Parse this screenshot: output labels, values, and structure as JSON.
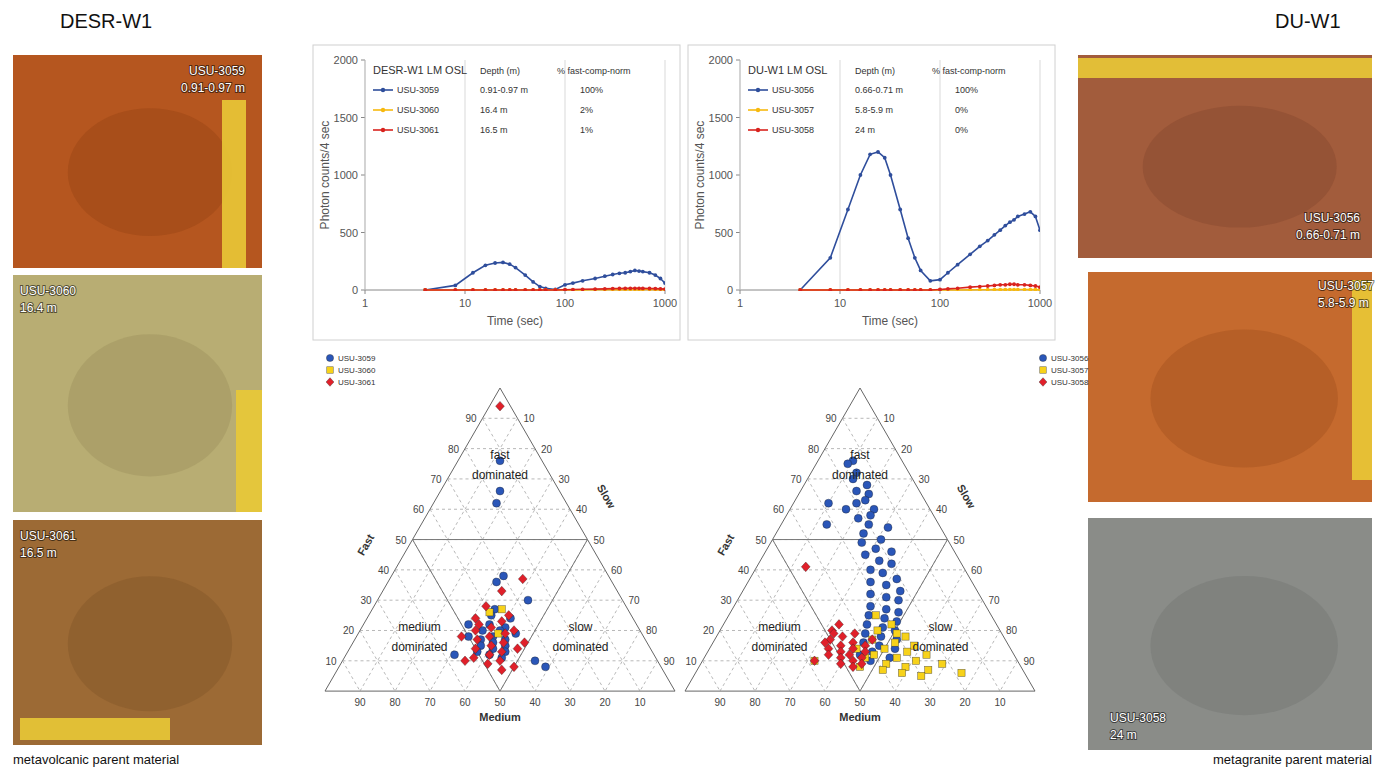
{
  "panels": [
    {
      "title": "DESR-W1",
      "caption": "metavolcanic parent material",
      "photos": [
        {
          "sample": "USU-3059",
          "depth": "0.91-0.97 m"
        },
        {
          "sample": "USU-3060",
          "depth": "16.4 m"
        },
        {
          "sample": "USU-3061",
          "depth": "16.5 m"
        }
      ]
    },
    {
      "title": "DU-W1",
      "caption": "metagranite parent material",
      "photos": [
        {
          "sample": "USU-3056",
          "depth": "0.66-0.71 m"
        },
        {
          "sample": "USU-3057",
          "depth": "5.8-5.9 m"
        },
        {
          "sample": "USU-3058",
          "depth": "24 m"
        }
      ]
    }
  ],
  "chart_data": [
    {
      "type": "line",
      "title": "DESR-W1 LM OSL",
      "x_label": "Time (sec)",
      "y_label": "Photon counts/4 sec",
      "log": "x",
      "grid": "x",
      "legend": "upper left",
      "legend_headers": [
        "Depth (m)",
        "% fast-comp-norm"
      ],
      "xlim": [
        1,
        1000
      ],
      "xticks": [
        1,
        10,
        100,
        1000
      ],
      "ylim": [
        0,
        2000
      ],
      "yticks": [
        0,
        500,
        1000,
        1500,
        2000
      ],
      "x": [
        4,
        8,
        12,
        16,
        20,
        24,
        28,
        32,
        40,
        48,
        56,
        64,
        80,
        100,
        120,
        150,
        200,
        250,
        300,
        350,
        400,
        450,
        500,
        550,
        600,
        700,
        800,
        900,
        1000
      ],
      "series": [
        {
          "name": "USU-3059",
          "color": "#2f4e9c",
          "marker": "circle",
          "depth": "0.91-0.97 m",
          "fast_comp_norm": "100%",
          "values": [
            0,
            40,
            150,
            215,
            235,
            240,
            225,
            195,
            130,
            70,
            30,
            15,
            5,
            45,
            60,
            80,
            100,
            120,
            135,
            145,
            150,
            160,
            170,
            165,
            160,
            150,
            130,
            100,
            60
          ]
        },
        {
          "name": "USU-3060",
          "color": "#f7b90f",
          "marker": "circle",
          "depth": "16.4 m",
          "fast_comp_norm": "2%",
          "values": [
            0,
            0,
            0,
            0,
            0,
            0,
            0,
            0,
            0,
            0,
            0,
            0,
            0,
            0,
            0,
            0,
            2,
            2,
            3,
            3,
            3,
            4,
            4,
            4,
            4,
            4,
            3,
            3,
            3
          ]
        },
        {
          "name": "USU-3061",
          "color": "#d9231e",
          "marker": "circle",
          "depth": "16.5 m",
          "fast_comp_norm": "1%",
          "values": [
            0,
            0,
            0,
            0,
            0,
            0,
            0,
            0,
            0,
            0,
            0,
            0,
            0,
            2,
            4,
            6,
            8,
            10,
            12,
            13,
            14,
            15,
            15,
            15,
            14,
            13,
            12,
            10,
            8
          ]
        }
      ]
    },
    {
      "type": "line",
      "title": "DU-W1 LM OSL",
      "x_label": "Time (sec)",
      "y_label": "Photon counts/4 sec",
      "log": "x",
      "grid": "x",
      "legend": "upper left",
      "legend_headers": [
        "Depth (m)",
        "% fast-comp-norm"
      ],
      "xlim": [
        1,
        1000
      ],
      "xticks": [
        1,
        10,
        100,
        1000
      ],
      "ylim": [
        0,
        2000
      ],
      "yticks": [
        0,
        500,
        1000,
        1500,
        2000
      ],
      "x": [
        4,
        8,
        12,
        16,
        20,
        24,
        28,
        32,
        40,
        48,
        56,
        64,
        80,
        100,
        120,
        150,
        200,
        250,
        300,
        350,
        400,
        450,
        500,
        550,
        600,
        700,
        800,
        900,
        1000
      ],
      "series": [
        {
          "name": "USU-3056",
          "color": "#2f4e9c",
          "marker": "circle",
          "depth": "0.66-0.71 m",
          "fast_comp_norm": "100%",
          "values": [
            0,
            280,
            700,
            1000,
            1180,
            1200,
            1150,
            1000,
            700,
            450,
            280,
            170,
            80,
            90,
            150,
            220,
            310,
            380,
            430,
            480,
            520,
            560,
            590,
            610,
            640,
            660,
            680,
            640,
            520
          ]
        },
        {
          "name": "USU-3057",
          "color": "#f7b90f",
          "marker": "circle",
          "depth": "5.8-5.9 m",
          "fast_comp_norm": "0%",
          "values": [
            0,
            0,
            0,
            0,
            0,
            0,
            0,
            0,
            0,
            0,
            0,
            0,
            0,
            0,
            0,
            0,
            1,
            2,
            2,
            3,
            3,
            3,
            4,
            4,
            4,
            4,
            3,
            3,
            2
          ]
        },
        {
          "name": "USU-3058",
          "color": "#d9231e",
          "marker": "circle",
          "depth": "24 m",
          "fast_comp_norm": "0%",
          "values": [
            0,
            0,
            0,
            0,
            0,
            0,
            0,
            0,
            0,
            0,
            0,
            0,
            0,
            5,
            10,
            15,
            25,
            30,
            35,
            40,
            45,
            45,
            50,
            50,
            45,
            45,
            40,
            35,
            25
          ]
        }
      ]
    },
    {
      "type": "ternary",
      "axis_labels": {
        "fast": "Fast",
        "medium": "Medium",
        "slow": "Slow"
      },
      "ticks": [
        10,
        20,
        30,
        40,
        50,
        60,
        70,
        80,
        90
      ],
      "grid": true,
      "legend": "upper left",
      "region_labels": [
        "fast dominated",
        "medium dominated",
        "slow dominated"
      ],
      "series": [
        {
          "name": "USU-3059",
          "color": "#2a56b8",
          "marker": "circle",
          "fast": [
            76,
            66,
            62,
            38,
            36,
            30,
            27,
            25,
            24,
            22,
            21,
            20,
            20,
            19,
            18,
            17,
            17,
            16,
            15,
            15,
            14,
            13,
            13,
            12,
            12,
            11,
            10,
            8,
            22,
            18
          ],
          "medium": [
            12,
            17,
            20,
            30,
            33,
            27,
            38,
            40,
            35,
            42,
            38,
            45,
            40,
            36,
            43,
            47,
            40,
            44,
            48,
            41,
            45,
            50,
            42,
            47,
            57,
            44,
            35,
            33,
            48,
            50
          ],
          "slow": [
            12,
            17,
            18,
            32,
            31,
            43,
            35,
            35,
            41,
            36,
            41,
            35,
            40,
            45,
            39,
            36,
            43,
            40,
            37,
            44,
            41,
            37,
            45,
            41,
            31,
            45,
            55,
            59,
            30,
            32
          ]
        },
        {
          "name": "USU-3060",
          "color": "#f7d21a",
          "marker": "square",
          "fast": [
            26,
            27,
            19
          ],
          "medium": [
            40,
            36,
            41
          ],
          "slow": [
            34,
            37,
            40
          ]
        },
        {
          "name": "USU-3061",
          "color": "#e0202a",
          "marker": "diamond",
          "fast": [
            94,
            37,
            33,
            28,
            25,
            24,
            23,
            21,
            20,
            19,
            18,
            17,
            16,
            15,
            14,
            13,
            12,
            11,
            10,
            9,
            8,
            7,
            14,
            16,
            20,
            22,
            18,
            10
          ],
          "medium": [
            3,
            25,
            33,
            40,
            35,
            45,
            38,
            42,
            47,
            39,
            44,
            48,
            41,
            45,
            50,
            43,
            47,
            52,
            45,
            49,
            42,
            46,
            38,
            35,
            36,
            45,
            52,
            55
          ],
          "slow": [
            3,
            38,
            34,
            32,
            40,
            31,
            39,
            37,
            33,
            42,
            38,
            35,
            43,
            40,
            36,
            44,
            41,
            37,
            45,
            42,
            50,
            47,
            48,
            49,
            44,
            33,
            30,
            35
          ]
        }
      ]
    },
    {
      "type": "ternary",
      "axis_labels": {
        "fast": "Fast",
        "medium": "Medium",
        "slow": "Slow"
      },
      "ticks": [
        10,
        20,
        30,
        40,
        50,
        60,
        70,
        80,
        90
      ],
      "grid": true,
      "legend": "upper right",
      "region_labels": [
        "fast dominated",
        "medium dominated",
        "slow dominated"
      ],
      "series": [
        {
          "name": "USU-3056",
          "color": "#2a56b8",
          "marker": "circle",
          "fast": [
            76,
            75,
            72,
            70,
            68,
            66,
            65,
            63,
            62,
            60,
            60,
            58,
            57,
            55,
            54,
            52,
            50,
            49,
            47,
            46,
            45,
            43,
            42,
            40,
            39,
            37,
            36,
            35,
            33,
            32,
            31,
            30,
            28,
            27,
            26,
            25,
            24,
            23,
            22,
            21,
            20,
            19,
            18,
            17,
            16,
            15,
            14,
            13,
            12,
            11,
            10,
            62,
            55
          ],
          "medium": [
            14,
            16,
            15,
            17,
            14,
            18,
            15,
            17,
            20,
            16,
            24,
            18,
            22,
            20,
            15,
            23,
            19,
            25,
            22,
            18,
            26,
            23,
            20,
            27,
            24,
            21,
            29,
            25,
            22,
            31,
            27,
            24,
            33,
            29,
            26,
            35,
            31,
            28,
            37,
            33,
            30,
            39,
            35,
            31,
            41,
            37,
            33,
            40,
            44,
            36,
            42,
            28,
            32
          ],
          "slow": [
            10,
            9,
            13,
            13,
            18,
            16,
            20,
            20,
            18,
            24,
            16,
            24,
            21,
            25,
            31,
            25,
            31,
            26,
            31,
            36,
            29,
            34,
            38,
            33,
            37,
            42,
            35,
            40,
            45,
            37,
            42,
            46,
            39,
            44,
            48,
            40,
            45,
            49,
            41,
            46,
            50,
            42,
            47,
            52,
            43,
            48,
            53,
            47,
            44,
            53,
            48,
            10,
            13
          ]
        },
        {
          "name": "USU-3057",
          "color": "#f7d21a",
          "marker": "square",
          "fast": [
            25,
            22,
            20,
            18,
            17,
            16,
            15,
            14,
            13,
            12,
            12,
            11,
            10,
            10,
            9,
            9,
            8,
            7,
            7,
            6,
            5,
            8,
            11,
            14,
            19,
            6
          ],
          "medium": [
            33,
            30,
            35,
            28,
            38,
            32,
            27,
            36,
            30,
            40,
            25,
            34,
            29,
            58,
            38,
            22,
            33,
            40,
            27,
            35,
            30,
            46,
            43,
            44,
            30,
            18
          ],
          "slow": [
            42,
            48,
            45,
            54,
            45,
            52,
            58,
            50,
            57,
            48,
            63,
            55,
            61,
            32,
            53,
            69,
            59,
            53,
            66,
            59,
            65,
            46,
            46,
            42,
            51,
            76
          ]
        },
        {
          "name": "USU-3058",
          "color": "#e0202a",
          "marker": "diamond",
          "fast": [
            41,
            22,
            20,
            19,
            18,
            17,
            16,
            15,
            15,
            14,
            14,
            13,
            13,
            12,
            12,
            11,
            11,
            10,
            10,
            9,
            9,
            8,
            16,
            19,
            17
          ],
          "medium": [
            45,
            45,
            48,
            42,
            46,
            50,
            44,
            48,
            41,
            52,
            45,
            49,
            42,
            47,
            53,
            44,
            50,
            47,
            58,
            45,
            51,
            48,
            52,
            48,
            38
          ],
          "slow": [
            14,
            33,
            32,
            39,
            36,
            33,
            40,
            37,
            44,
            34,
            41,
            38,
            45,
            41,
            35,
            45,
            39,
            43,
            32,
            46,
            40,
            44,
            32,
            33,
            45
          ]
        }
      ]
    }
  ]
}
